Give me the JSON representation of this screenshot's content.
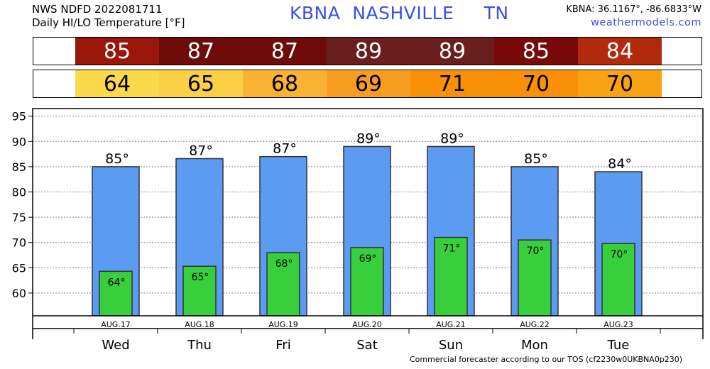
{
  "header": {
    "line1": "NWS NDFD 2022081711",
    "line2": "Daily HI/LO Temperature [°F]",
    "station": "KBNA",
    "city": "NASHVILLE",
    "state": "TN",
    "coords": "KBNA: 36.1167°, -86.6833°W",
    "site": "weathermodels.com"
  },
  "colors": {
    "hi_cells": [
      "#9a1608",
      "#6d0c08",
      "#6d0c08",
      "#6a1e1e",
      "#6a1e1e",
      "#7a0a0a",
      "#b22a0e"
    ],
    "lo_cells": [
      "#fcd94a",
      "#fbd044",
      "#f9b232",
      "#f99d20",
      "#fa9008",
      "#fa9008",
      "#fba214"
    ],
    "hi_bar": "#5b9bf2",
    "lo_bar": "#37cf3c"
  },
  "chart_data": {
    "type": "bar",
    "categories": [
      "Wed",
      "Thu",
      "Fri",
      "Sat",
      "Sun",
      "Mon",
      "Tue"
    ],
    "dates": [
      "AUG.17",
      "AUG.18",
      "AUG.19",
      "AUG.20",
      "AUG.21",
      "AUG.22",
      "AUG.23"
    ],
    "series": [
      {
        "values": [
          85,
          86.6,
          87,
          89,
          89,
          85,
          84
        ]
      },
      {
        "values": [
          64.3,
          65.3,
          68,
          69,
          71,
          70.5,
          69.8
        ]
      }
    ],
    "hi_labels": [
      "85°",
      "87°",
      "87°",
      "89°",
      "89°",
      "85°",
      "84°"
    ],
    "lo_labels": [
      "64°",
      "65°",
      "68°",
      "69°",
      "71°",
      "70°",
      "70°"
    ],
    "hi_row": [
      "85",
      "87",
      "87",
      "89",
      "89",
      "85",
      "84"
    ],
    "lo_row": [
      "64",
      "65",
      "68",
      "69",
      "71",
      "70",
      "70"
    ],
    "yticks": [
      "95",
      "90",
      "85",
      "80",
      "75",
      "70",
      "65",
      "60"
    ],
    "ylim": [
      55.5,
      96.5
    ],
    "grid": true
  },
  "footer": "Commercial forecaster according to our TOS (cf2230w0UKBNA0p230)"
}
